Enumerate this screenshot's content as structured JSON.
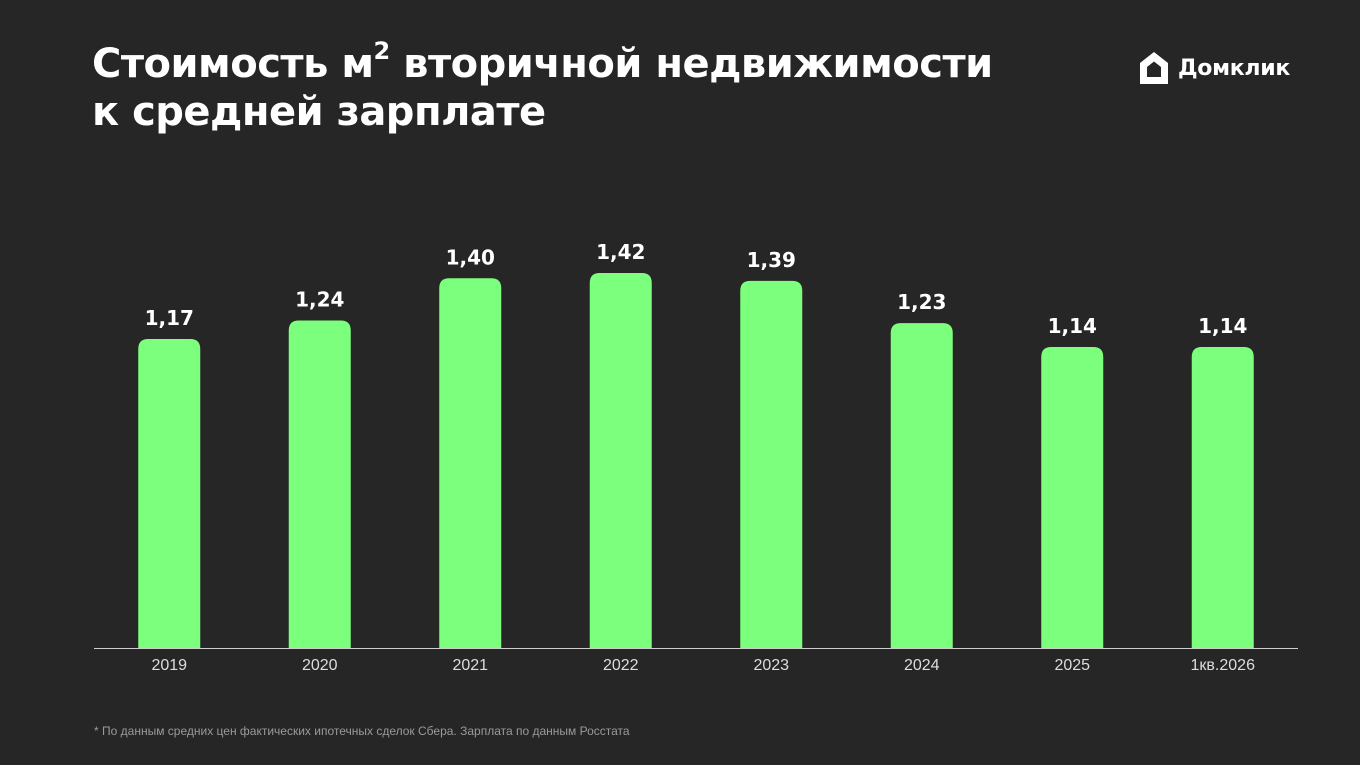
{
  "header": {
    "title_line1_pre": "Стоимость м",
    "title_sup": "2",
    "title_line1_post": " вторичной недвижимости",
    "title_line2": "к средней зарплате"
  },
  "logo": {
    "text": "Домклик",
    "icon": "house-icon"
  },
  "colors": {
    "background": "#262626",
    "bar": "#7cff7c",
    "axis": "#cfcfcf",
    "text": "#ffffff",
    "footnote": "#9a9a9a"
  },
  "chart_data": {
    "type": "bar",
    "title": "Стоимость м² вторичной недвижимости к средней зарплате",
    "categories": [
      "2019",
      "2020",
      "2021",
      "2022",
      "2023",
      "2024",
      "2025",
      "1кв.2026"
    ],
    "values": [
      1.17,
      1.24,
      1.4,
      1.42,
      1.39,
      1.23,
      1.14,
      1.14
    ],
    "value_labels": [
      "1,17",
      "1,24",
      "1,40",
      "1,42",
      "1,39",
      "1,23",
      "1,14",
      "1,14"
    ],
    "xlabel": "",
    "ylabel": "",
    "ylim": [
      0,
      1.42
    ],
    "grid": false,
    "legend": "none"
  },
  "footnote": "* По данным средних цен фактических ипотечных сделок Сбера.  Зарплата по данным Росстата"
}
